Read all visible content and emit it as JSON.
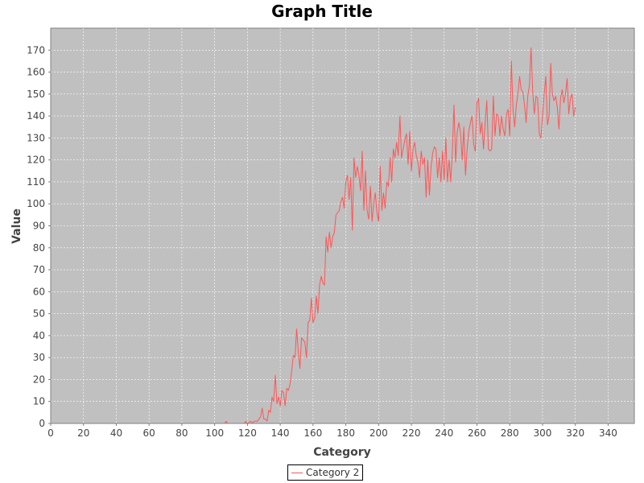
{
  "chart_data": {
    "type": "line",
    "title": "Graph Title",
    "xlabel": "Category",
    "ylabel": "Value",
    "xlim": [
      0,
      356
    ],
    "ylim": [
      0,
      180
    ],
    "x_ticks": [
      0,
      20,
      40,
      60,
      80,
      100,
      120,
      140,
      160,
      180,
      200,
      220,
      240,
      260,
      280,
      300,
      320,
      340
    ],
    "y_ticks": [
      0,
      10,
      20,
      30,
      40,
      50,
      60,
      70,
      80,
      90,
      100,
      110,
      120,
      130,
      140,
      150,
      160,
      170
    ],
    "grid": true,
    "legend_position": "bottom-center",
    "plot_background": "#c0c0c0",
    "series": [
      {
        "name": "Category 2",
        "color": "#ff5555",
        "points": [
          [
            0,
            0
          ],
          [
            20,
            0
          ],
          [
            40,
            0
          ],
          [
            60,
            0
          ],
          [
            80,
            0
          ],
          [
            100,
            0
          ],
          [
            106,
            0
          ],
          [
            107,
            1
          ],
          [
            108,
            0
          ],
          [
            118,
            0
          ],
          [
            119,
            1
          ],
          [
            120,
            0
          ],
          [
            122,
            1
          ],
          [
            123,
            0
          ],
          [
            124,
            1
          ],
          [
            126,
            1
          ],
          [
            127,
            2
          ],
          [
            128,
            3
          ],
          [
            129,
            7
          ],
          [
            130,
            2
          ],
          [
            131,
            2
          ],
          [
            132,
            1
          ],
          [
            133,
            6
          ],
          [
            134,
            5
          ],
          [
            135,
            12
          ],
          [
            136,
            10
          ],
          [
            137,
            22
          ],
          [
            138,
            9
          ],
          [
            139,
            12
          ],
          [
            140,
            8
          ],
          [
            141,
            15
          ],
          [
            142,
            14
          ],
          [
            143,
            8
          ],
          [
            144,
            16
          ],
          [
            145,
            15
          ],
          [
            146,
            18
          ],
          [
            147,
            24
          ],
          [
            148,
            31
          ],
          [
            149,
            30
          ],
          [
            150,
            43
          ],
          [
            151,
            33
          ],
          [
            152,
            25
          ],
          [
            153,
            39
          ],
          [
            154,
            38
          ],
          [
            155,
            37
          ],
          [
            156,
            30
          ],
          [
            157,
            46
          ],
          [
            158,
            47
          ],
          [
            159,
            57
          ],
          [
            160,
            46
          ],
          [
            161,
            48
          ],
          [
            162,
            58
          ],
          [
            163,
            50
          ],
          [
            164,
            63
          ],
          [
            165,
            67
          ],
          [
            166,
            64
          ],
          [
            167,
            63
          ],
          [
            168,
            85
          ],
          [
            169,
            78
          ],
          [
            170,
            87
          ],
          [
            171,
            80
          ],
          [
            172,
            85
          ],
          [
            173,
            87
          ],
          [
            174,
            95
          ],
          [
            175,
            96
          ],
          [
            176,
            97
          ],
          [
            177,
            101
          ],
          [
            178,
            103
          ],
          [
            179,
            98
          ],
          [
            180,
            110
          ],
          [
            181,
            113
          ],
          [
            182,
            102
          ],
          [
            183,
            112
          ],
          [
            184,
            88
          ],
          [
            185,
            121
          ],
          [
            186,
            112
          ],
          [
            187,
            117
          ],
          [
            188,
            113
          ],
          [
            189,
            106
          ],
          [
            190,
            124
          ],
          [
            191,
            97
          ],
          [
            192,
            115
          ],
          [
            193,
            97
          ],
          [
            194,
            93
          ],
          [
            195,
            108
          ],
          [
            196,
            92
          ],
          [
            197,
            100
          ],
          [
            198,
            105
          ],
          [
            199,
            96
          ],
          [
            200,
            92
          ],
          [
            201,
            117
          ],
          [
            202,
            97
          ],
          [
            203,
            105
          ],
          [
            204,
            98
          ],
          [
            205,
            110
          ],
          [
            206,
            108
          ],
          [
            207,
            121
          ],
          [
            208,
            110
          ],
          [
            209,
            125
          ],
          [
            210,
            121
          ],
          [
            211,
            128
          ],
          [
            212,
            122
          ],
          [
            213,
            140
          ],
          [
            214,
            121
          ],
          [
            215,
            125
          ],
          [
            216,
            129
          ],
          [
            217,
            132
          ],
          [
            218,
            118
          ],
          [
            219,
            133
          ],
          [
            220,
            115
          ],
          [
            221,
            125
          ],
          [
            222,
            128
          ],
          [
            223,
            122
          ],
          [
            224,
            119
          ],
          [
            225,
            112
          ],
          [
            226,
            124
          ],
          [
            227,
            118
          ],
          [
            228,
            121
          ],
          [
            229,
            103
          ],
          [
            230,
            120
          ],
          [
            231,
            104
          ],
          [
            232,
            117
          ],
          [
            233,
            123
          ],
          [
            234,
            126
          ],
          [
            235,
            125
          ],
          [
            236,
            112
          ],
          [
            237,
            121
          ],
          [
            238,
            110
          ],
          [
            239,
            124
          ],
          [
            240,
            111
          ],
          [
            241,
            130
          ],
          [
            242,
            110
          ],
          [
            243,
            120
          ],
          [
            244,
            110
          ],
          [
            245,
            124
          ],
          [
            246,
            145
          ],
          [
            247,
            119
          ],
          [
            248,
            133
          ],
          [
            249,
            137
          ],
          [
            250,
            132
          ],
          [
            251,
            120
          ],
          [
            252,
            135
          ],
          [
            253,
            113
          ],
          [
            254,
            125
          ],
          [
            255,
            133
          ],
          [
            256,
            137
          ],
          [
            257,
            140
          ],
          [
            258,
            127
          ],
          [
            259,
            124
          ],
          [
            260,
            146
          ],
          [
            261,
            148
          ],
          [
            262,
            132
          ],
          [
            263,
            137
          ],
          [
            264,
            125
          ],
          [
            265,
            137
          ],
          [
            266,
            147
          ],
          [
            267,
            125
          ],
          [
            268,
            124
          ],
          [
            269,
            125
          ],
          [
            270,
            149
          ],
          [
            271,
            131
          ],
          [
            272,
            141
          ],
          [
            273,
            140
          ],
          [
            274,
            131
          ],
          [
            275,
            140
          ],
          [
            276,
            134
          ],
          [
            277,
            131
          ],
          [
            278,
            141
          ],
          [
            279,
            143
          ],
          [
            280,
            131
          ],
          [
            281,
            165
          ],
          [
            282,
            143
          ],
          [
            283,
            135
          ],
          [
            284,
            145
          ],
          [
            285,
            150
          ],
          [
            286,
            158
          ],
          [
            287,
            152
          ],
          [
            288,
            151
          ],
          [
            289,
            145
          ],
          [
            290,
            137
          ],
          [
            291,
            149
          ],
          [
            292,
            154
          ],
          [
            293,
            171
          ],
          [
            294,
            151
          ],
          [
            295,
            141
          ],
          [
            296,
            149
          ],
          [
            297,
            148
          ],
          [
            298,
            132
          ],
          [
            299,
            130
          ],
          [
            300,
            140
          ],
          [
            301,
            150
          ],
          [
            302,
            158
          ],
          [
            303,
            136
          ],
          [
            304,
            140
          ],
          [
            305,
            164
          ],
          [
            306,
            150
          ],
          [
            307,
            147
          ],
          [
            308,
            149
          ],
          [
            309,
            144
          ],
          [
            310,
            134
          ],
          [
            311,
            148
          ],
          [
            312,
            152
          ],
          [
            313,
            146
          ],
          [
            314,
            150
          ],
          [
            315,
            157
          ],
          [
            316,
            141
          ],
          [
            317,
            148
          ],
          [
            318,
            150
          ],
          [
            319,
            140
          ],
          [
            320,
            144
          ]
        ]
      }
    ]
  }
}
